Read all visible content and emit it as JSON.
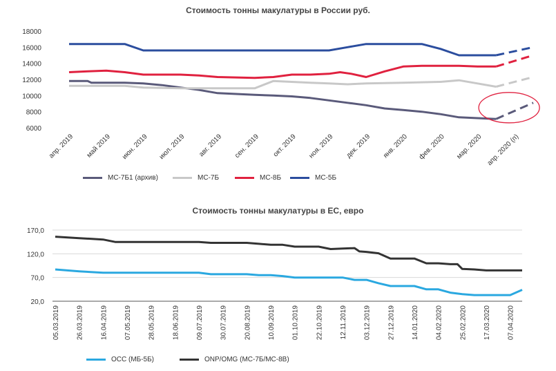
{
  "chart_data": [
    {
      "type": "line",
      "title": "Стоимость тонны макулатуры в России руб.",
      "categories": [
        "апр. 2019",
        "май 2019",
        "июн. 2019",
        "июл. 2019",
        "авг. 2019",
        "сен. 2019",
        "окт. 2019",
        "ноя. 2019",
        "дек. 2019",
        "янв. 2020",
        "фев. 2020",
        "мар. 2020",
        "апр. 2020 (п)"
      ],
      "yticks": [
        "18000",
        "16000",
        "14000",
        "12000",
        "10000",
        "8000",
        "6000"
      ],
      "ylim": [
        6000,
        18000
      ],
      "grid": false,
      "legend_position": "bottom",
      "forecast_note": "последний сегмент — прогноз (пунктир), выделен красным эллипсом",
      "series": [
        {
          "name": "МС-7Б1 (архив)",
          "color": "#5a5a7a",
          "points": [
            [
              0,
              11800
            ],
            [
              0.5,
              11800
            ],
            [
              0.6,
              11600
            ],
            [
              1,
              11600
            ],
            [
              1.5,
              11600
            ],
            [
              2,
              11500
            ],
            [
              2.5,
              11300
            ],
            [
              3,
              11000
            ],
            [
              3.5,
              10700
            ],
            [
              4,
              10300
            ],
            [
              4.5,
              10200
            ],
            [
              5,
              10100
            ],
            [
              5.5,
              10000
            ],
            [
              6,
              9900
            ],
            [
              6.5,
              9700
            ],
            [
              7,
              9400
            ],
            [
              7.5,
              9100
            ],
            [
              8,
              8800
            ],
            [
              8.5,
              8400
            ],
            [
              9,
              8200
            ],
            [
              9.5,
              8000
            ],
            [
              10,
              7700
            ],
            [
              10.5,
              7300
            ],
            [
              11,
              7200
            ],
            [
              11.5,
              7100
            ]
          ],
          "forecast": [
            [
              11.5,
              7100
            ],
            [
              12.5,
              9100
            ]
          ]
        },
        {
          "name": "МС-7Б",
          "color": "#c8c8c8",
          "points": [
            [
              0,
              11200
            ],
            [
              1,
              11200
            ],
            [
              1.5,
              11200
            ],
            [
              2,
              11000
            ],
            [
              3,
              10900
            ],
            [
              4,
              10900
            ],
            [
              5,
              10900
            ],
            [
              5.5,
              11800
            ],
            [
              6,
              11700
            ],
            [
              6.5,
              11600
            ],
            [
              7,
              11500
            ],
            [
              7.5,
              11400
            ],
            [
              8,
              11500
            ],
            [
              9,
              11600
            ],
            [
              10,
              11700
            ],
            [
              10.5,
              11900
            ],
            [
              11,
              11500
            ],
            [
              11.5,
              11100
            ]
          ],
          "forecast": [
            [
              11.5,
              11100
            ],
            [
              12.5,
              12300
            ]
          ]
        },
        {
          "name": "МС-8Б",
          "color": "#e0213f",
          "points": [
            [
              0,
              12900
            ],
            [
              0.5,
              13000
            ],
            [
              1,
              13100
            ],
            [
              1.5,
              12900
            ],
            [
              2,
              12600
            ],
            [
              2.5,
              12600
            ],
            [
              3,
              12600
            ],
            [
              3.5,
              12500
            ],
            [
              4,
              12300
            ],
            [
              5,
              12200
            ],
            [
              5.5,
              12300
            ],
            [
              6,
              12600
            ],
            [
              6.5,
              12600
            ],
            [
              7,
              12700
            ],
            [
              7.3,
              12900
            ],
            [
              7.6,
              12700
            ],
            [
              8,
              12300
            ],
            [
              8.5,
              13000
            ],
            [
              9,
              13600
            ],
            [
              9.5,
              13700
            ],
            [
              10,
              13700
            ],
            [
              10.5,
              13700
            ],
            [
              11,
              13600
            ],
            [
              11.5,
              13600
            ]
          ],
          "forecast": [
            [
              11.5,
              13600
            ],
            [
              12.5,
              15000
            ]
          ]
        },
        {
          "name": "МС-5Б",
          "color": "#2b4d9e",
          "points": [
            [
              0,
              16400
            ],
            [
              1,
              16400
            ],
            [
              1.5,
              16400
            ],
            [
              2,
              15600
            ],
            [
              2.5,
              15600
            ],
            [
              3,
              15600
            ],
            [
              4,
              15600
            ],
            [
              5,
              15600
            ],
            [
              6,
              15600
            ],
            [
              7,
              15600
            ],
            [
              7.5,
              16000
            ],
            [
              8,
              16400
            ],
            [
              8.5,
              16400
            ],
            [
              9,
              16400
            ],
            [
              9.5,
              16400
            ],
            [
              10,
              15800
            ],
            [
              10.5,
              15000
            ],
            [
              11,
              15000
            ],
            [
              11.5,
              15000
            ]
          ],
          "forecast": [
            [
              11.5,
              15000
            ],
            [
              12.5,
              16000
            ]
          ]
        }
      ]
    },
    {
      "type": "line",
      "title": "Стоимость тонны макулатуры в ЕС, евро",
      "categories": [
        "05.03.2019",
        "26.03.2019",
        "16.04.2019",
        "07.05.2019",
        "28.05.2019",
        "18.06.2019",
        "09.07.2019",
        "30.07.2019",
        "20.08.2019",
        "10.09.2019",
        "01.10.2019",
        "22.10.2019",
        "12.11.2019",
        "03.12.2019",
        "27.12.2019",
        "14.01.2020",
        "04.02.2020",
        "25.02.2020",
        "17.03.2020",
        "07.04.2020"
      ],
      "yticks": [
        "170,0",
        "120,0",
        "70,0",
        "20,0"
      ],
      "ylim": [
        20,
        170
      ],
      "grid": true,
      "legend_position": "bottom",
      "series": [
        {
          "name": "OCC (МБ-5Б)",
          "color": "#2aa8e0",
          "points": [
            [
              0,
              87
            ],
            [
              1,
              83
            ],
            [
              2,
              80
            ],
            [
              3,
              80
            ],
            [
              4,
              80
            ],
            [
              5,
              80
            ],
            [
              6,
              80
            ],
            [
              6.5,
              77
            ],
            [
              7,
              77
            ],
            [
              8,
              77
            ],
            [
              8.5,
              75
            ],
            [
              9,
              75
            ],
            [
              9.5,
              73
            ],
            [
              10,
              70
            ],
            [
              10.5,
              70
            ],
            [
              11,
              70
            ],
            [
              12,
              70
            ],
            [
              12.5,
              65
            ],
            [
              13,
              65
            ],
            [
              13.5,
              58
            ],
            [
              14,
              52
            ],
            [
              14.5,
              52
            ],
            [
              15,
              52
            ],
            [
              15.5,
              45
            ],
            [
              16,
              45
            ],
            [
              16.5,
              38
            ],
            [
              17,
              35
            ],
            [
              17.5,
              33
            ],
            [
              18,
              33
            ],
            [
              18.5,
              33
            ],
            [
              19,
              33
            ],
            [
              19.5,
              44
            ]
          ]
        },
        {
          "name": "ONP/OMG (МС-7Б/МС-8В)",
          "color": "#333333",
          "points": [
            [
              0,
              156
            ],
            [
              1,
              153
            ],
            [
              2,
              150
            ],
            [
              2.5,
              145
            ],
            [
              3,
              145
            ],
            [
              4,
              145
            ],
            [
              5,
              145
            ],
            [
              6,
              145
            ],
            [
              6.5,
              143
            ],
            [
              7,
              143
            ],
            [
              8,
              143
            ],
            [
              8.5,
              141
            ],
            [
              9,
              139
            ],
            [
              9.5,
              139
            ],
            [
              10,
              135
            ],
            [
              11,
              135
            ],
            [
              11.5,
              130
            ],
            [
              12,
              131
            ],
            [
              12.5,
              132
            ],
            [
              12.7,
              125
            ],
            [
              13,
              124
            ],
            [
              13.5,
              121
            ],
            [
              14,
              110
            ],
            [
              14.5,
              110
            ],
            [
              15,
              110
            ],
            [
              15.5,
              100
            ],
            [
              16,
              100
            ],
            [
              16.5,
              98
            ],
            [
              16.8,
              98
            ],
            [
              17,
              88
            ],
            [
              17.5,
              87
            ],
            [
              18,
              85
            ],
            [
              18.5,
              85
            ],
            [
              19,
              85
            ],
            [
              19.5,
              85
            ]
          ]
        }
      ]
    }
  ]
}
